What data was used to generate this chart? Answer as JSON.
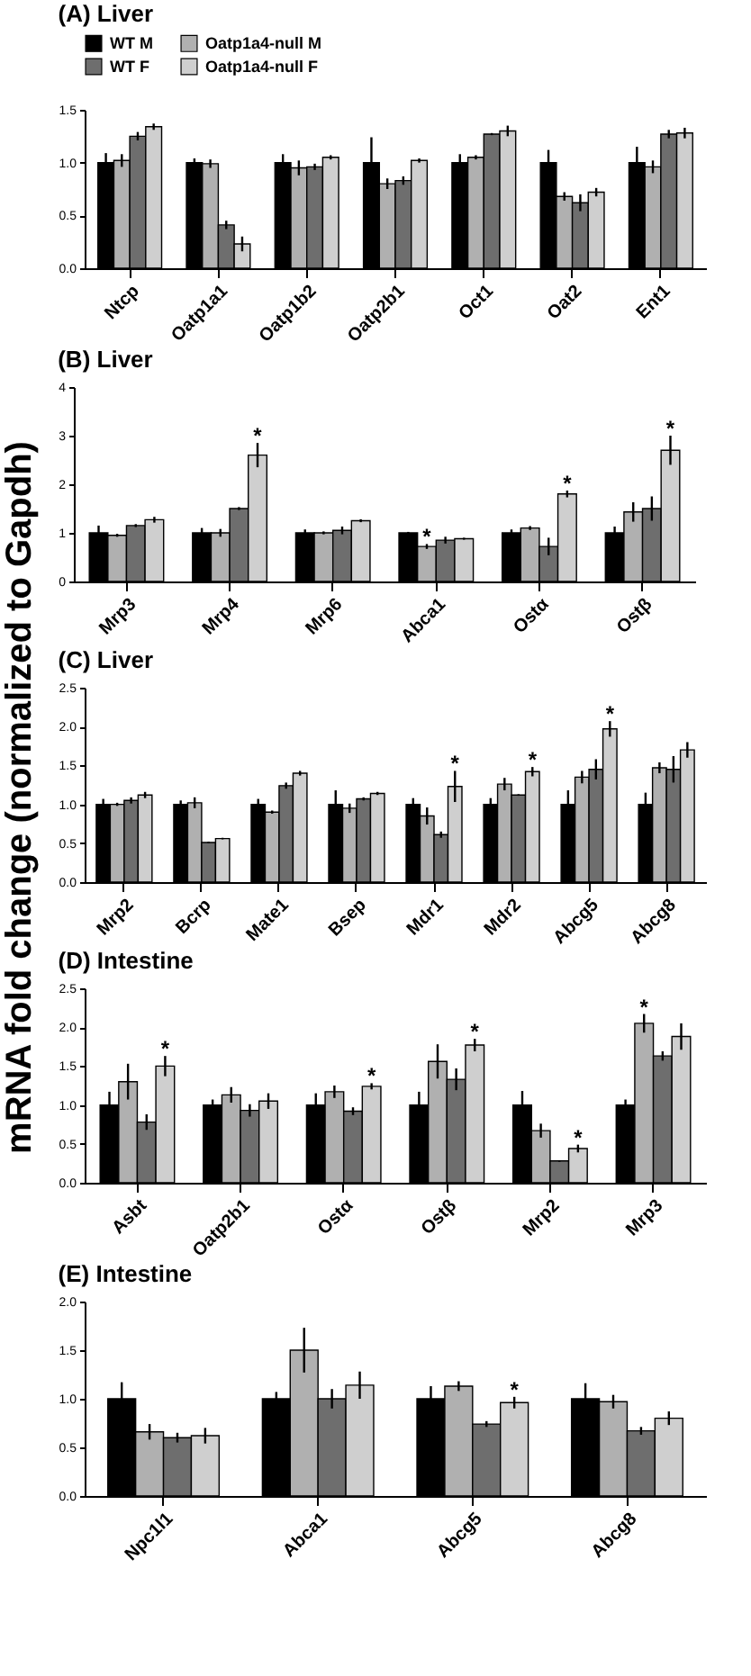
{
  "chart_data": [
    {
      "type": "bar",
      "title": "(A) Liver",
      "categories": [
        "Ntcp",
        "Oatp1a1",
        "Oatp1b2",
        "Oatp2b1",
        "Oct1",
        "Oat2",
        "Ent1"
      ],
      "ylim": [
        0,
        1.5
      ],
      "yticks": [
        {
          "value": 0,
          "label": "0.0"
        },
        0.5,
        {
          "value": 1,
          "label": "1.0"
        },
        1.5
      ],
      "legend": "top",
      "series": [
        {
          "name": "WT M",
          "color": "#000000",
          "values": [
            1.0,
            1.0,
            1.0,
            1.0,
            1.0,
            1.0,
            1.0
          ],
          "errors": [
            0.09,
            0.04,
            0.08,
            0.24,
            0.08,
            0.12,
            0.15
          ]
        },
        {
          "name": "Oatp1a4-null M",
          "color": "#b0b0b0",
          "values": [
            1.02,
            0.99,
            0.95,
            0.8,
            1.05,
            0.68,
            0.96
          ],
          "errors": [
            0.06,
            0.04,
            0.07,
            0.05,
            0.02,
            0.04,
            0.06
          ]
        },
        {
          "name": "WT F",
          "color": "#6e6e6e",
          "values": [
            1.25,
            0.41,
            0.96,
            0.83,
            1.27,
            0.62,
            1.27
          ],
          "errors": [
            0.04,
            0.04,
            0.03,
            0.04,
            0.01,
            0.08,
            0.04
          ]
        },
        {
          "name": "Oatp1a4-null F",
          "color": "#cfcfcf",
          "values": [
            1.34,
            0.23,
            1.05,
            1.02,
            1.3,
            0.72,
            1.28
          ],
          "errors": [
            0.03,
            0.07,
            0.02,
            0.02,
            0.05,
            0.04,
            0.05
          ]
        }
      ]
    },
    {
      "type": "bar",
      "title": "(B) Liver",
      "categories": [
        "Mrp3",
        "Mrp4",
        "Mrp6",
        "Abca1",
        "Ostα",
        "Ostβ"
      ],
      "ylim": [
        0,
        4
      ],
      "yticks": [
        0,
        1,
        2,
        3,
        4
      ],
      "series": [
        {
          "color": "#000000",
          "values": [
            1.0,
            1.0,
            1.0,
            1.0,
            1.0,
            1.0
          ],
          "errors": [
            0.15,
            0.1,
            0.07,
            0.02,
            0.07,
            0.13
          ]
        },
        {
          "color": "#b0b0b0",
          "values": [
            0.95,
            1.0,
            1.0,
            0.72,
            1.1,
            1.43
          ],
          "errors": [
            0.03,
            0.08,
            0.03,
            0.05,
            0.04,
            0.2
          ],
          "value_labels": [
            null,
            null,
            null,
            "*",
            null,
            null
          ]
        },
        {
          "color": "#6e6e6e",
          "values": [
            1.15,
            1.5,
            1.05,
            0.85,
            0.72,
            1.5
          ],
          "errors": [
            0.03,
            0.03,
            0.08,
            0.07,
            0.18,
            0.25
          ]
        },
        {
          "color": "#cfcfcf",
          "values": [
            1.27,
            2.6,
            1.25,
            0.88,
            1.8,
            2.7
          ],
          "errors": [
            0.06,
            0.25,
            0.03,
            0.02,
            0.07,
            0.3
          ],
          "value_labels": [
            null,
            "*",
            null,
            null,
            "*",
            "*"
          ]
        }
      ]
    },
    {
      "type": "bar",
      "title": "(C) Liver",
      "ylabel": "mRNA fold change (normalized to Gapdh)",
      "categories": [
        "Mrp2",
        "Bcrp",
        "Mate1",
        "Bsep",
        "Mdr1",
        "Mdr2",
        "Abcg5",
        "Abcg8"
      ],
      "ylim": [
        0,
        2.5
      ],
      "yticks": [
        {
          "value": 0,
          "label": "0.0"
        },
        0.5,
        {
          "value": 1,
          "label": "1.0"
        },
        1.5,
        {
          "value": 2,
          "label": "2.0"
        },
        2.5
      ],
      "series": [
        {
          "color": "#000000",
          "values": [
            1.0,
            1.0,
            1.0,
            1.0,
            1.0,
            1.0,
            1.0,
            1.0
          ],
          "errors": [
            0.07,
            0.05,
            0.07,
            0.18,
            0.08,
            0.08,
            0.18,
            0.15
          ]
        },
        {
          "color": "#b0b0b0",
          "values": [
            1.0,
            1.02,
            0.9,
            0.95,
            0.85,
            1.26,
            1.35,
            1.47
          ],
          "errors": [
            0.02,
            0.07,
            0.02,
            0.06,
            0.11,
            0.08,
            0.08,
            0.07
          ]
        },
        {
          "color": "#6e6e6e",
          "values": [
            1.05,
            0.51,
            1.24,
            1.07,
            0.61,
            1.12,
            1.45,
            1.45
          ],
          "errors": [
            0.04,
            0.01,
            0.04,
            0.02,
            0.04,
            0.01,
            0.13,
            0.17
          ]
        },
        {
          "color": "#cfcfcf",
          "values": [
            1.12,
            0.56,
            1.4,
            1.14,
            1.23,
            1.42,
            1.97,
            1.7
          ],
          "errors": [
            0.04,
            0.01,
            0.03,
            0.02,
            0.2,
            0.06,
            0.1,
            0.1
          ],
          "value_labels": [
            null,
            null,
            null,
            null,
            "*",
            "*",
            "*",
            null
          ]
        }
      ]
    },
    {
      "type": "bar",
      "title": "(D) Intestine",
      "categories": [
        "Asbt",
        "Oatp2b1",
        "Ostα",
        "Ostβ",
        "Mrp2",
        "Mrp3"
      ],
      "ylim": [
        0,
        2.5
      ],
      "yticks": [
        {
          "value": 0,
          "label": "0.0"
        },
        0.5,
        {
          "value": 1,
          "label": "1.0"
        },
        1.5,
        {
          "value": 2,
          "label": "2.0"
        },
        2.5
      ],
      "series": [
        {
          "color": "#000000",
          "values": [
            1.0,
            1.0,
            1.0,
            1.0,
            1.0,
            1.0
          ],
          "errors": [
            0.17,
            0.07,
            0.15,
            0.17,
            0.18,
            0.07
          ]
        },
        {
          "color": "#b0b0b0",
          "values": [
            1.3,
            1.13,
            1.17,
            1.56,
            0.67,
            2.05
          ],
          "errors": [
            0.23,
            0.1,
            0.08,
            0.22,
            0.09,
            0.12
          ],
          "value_labels": [
            null,
            null,
            null,
            null,
            null,
            "*"
          ]
        },
        {
          "color": "#6e6e6e",
          "values": [
            0.78,
            0.93,
            0.92,
            1.33,
            0.28,
            1.63
          ],
          "errors": [
            0.1,
            0.08,
            0.05,
            0.14,
            0.01,
            0.06
          ]
        },
        {
          "color": "#cfcfcf",
          "values": [
            1.5,
            1.05,
            1.24,
            1.77,
            0.44,
            1.88
          ],
          "errors": [
            0.13,
            0.1,
            0.04,
            0.08,
            0.05,
            0.17
          ],
          "value_labels": [
            "*",
            null,
            "*",
            "*",
            "*",
            null
          ]
        }
      ]
    },
    {
      "type": "bar",
      "title": "(E) Intestine",
      "categories": [
        "Npc1l1",
        "Abca1",
        "Abcg5",
        "Abcg8"
      ],
      "ylim": [
        0,
        2
      ],
      "yticks": [
        {
          "value": 0,
          "label": "0.0"
        },
        0.5,
        {
          "value": 1,
          "label": "1.0"
        },
        1.5,
        {
          "value": 2,
          "label": "2.0"
        }
      ],
      "series": [
        {
          "color": "#000000",
          "values": [
            1.0,
            1.0,
            1.0,
            1.0
          ],
          "errors": [
            0.17,
            0.07,
            0.13,
            0.16
          ]
        },
        {
          "color": "#b0b0b0",
          "values": [
            0.66,
            1.5,
            1.13,
            0.97
          ],
          "errors": [
            0.08,
            0.23,
            0.05,
            0.07
          ]
        },
        {
          "color": "#6e6e6e",
          "values": [
            0.6,
            1.0,
            0.74,
            0.67
          ],
          "errors": [
            0.05,
            0.1,
            0.03,
            0.04
          ]
        },
        {
          "color": "#cfcfcf",
          "values": [
            0.62,
            1.14,
            0.96,
            0.8
          ],
          "errors": [
            0.08,
            0.14,
            0.06,
            0.07
          ],
          "value_labels": [
            null,
            null,
            "*",
            null
          ]
        }
      ]
    }
  ]
}
